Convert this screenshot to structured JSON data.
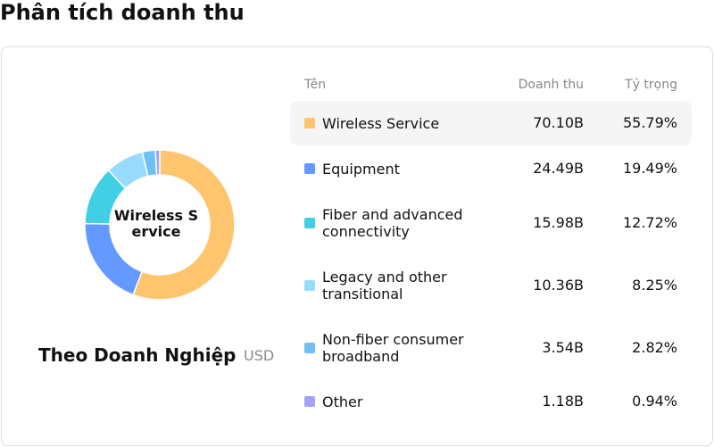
{
  "chart_data": {
    "type": "donut",
    "title": "Phân tích doanh thu",
    "subtitle": "Theo Doanh Nghiệp",
    "unit": "USD",
    "name_header": "Tên",
    "selected": 0,
    "categories": [
      "Wireless Service",
      "Equipment",
      "Fiber and advanced connectivity",
      "Legacy and other transitional",
      "Non-fiber consumer broadband",
      "Other"
    ],
    "colors": [
      "#ffc46e",
      "#6499ff",
      "#3fd0e6",
      "#98dbfd",
      "#6ec0f5",
      "#a3a3f5"
    ],
    "series": [
      {
        "name": "Doanh thu",
        "values": [
          70.1,
          24.49,
          15.98,
          10.36,
          3.54,
          1.18
        ],
        "value_labels": [
          "70.10B",
          "24.49B",
          "15.98B",
          "10.36B",
          "3.54B",
          "1.18B"
        ]
      },
      {
        "name": "Tỷ trọng",
        "values": [
          55.79,
          19.49,
          12.72,
          8.25,
          2.82,
          0.94
        ],
        "value_labels": [
          "55.79%",
          "19.49%",
          "12.72%",
          "8.25%",
          "2.82%",
          "0.94%"
        ]
      }
    ]
  }
}
